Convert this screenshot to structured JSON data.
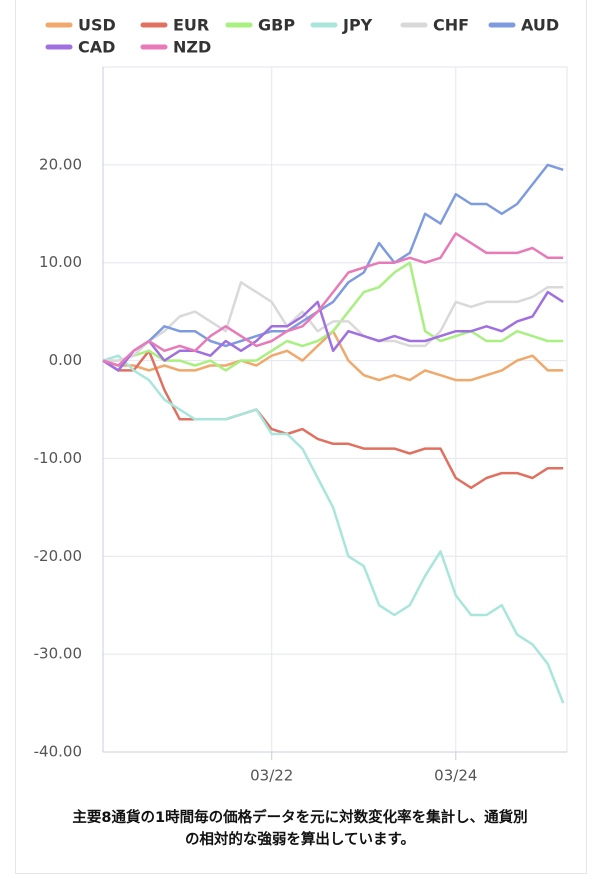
{
  "chart_data": {
    "type": "line",
    "x": [
      0,
      4,
      8,
      12,
      16,
      20,
      24,
      28,
      32,
      36,
      40,
      44,
      48,
      52,
      56,
      60,
      64,
      68,
      72,
      76,
      80,
      84,
      88,
      92,
      96,
      100,
      104,
      108,
      112,
      116,
      120
    ],
    "xlim": [
      0,
      121
    ],
    "xticks": [
      {
        "value": 44,
        "label": "03/22"
      },
      {
        "value": 92,
        "label": "03/24"
      }
    ],
    "ylim": [
      -40,
      30
    ],
    "yticks": [
      {
        "value": -40,
        "label": "-40.00"
      },
      {
        "value": -30,
        "label": "-30.00"
      },
      {
        "value": -20,
        "label": "-20.00"
      },
      {
        "value": -10,
        "label": "-10.00"
      },
      {
        "value": 0,
        "label": "0.00"
      },
      {
        "value": 10,
        "label": "10.00"
      },
      {
        "value": 20,
        "label": "20.00"
      }
    ],
    "grid": true,
    "series": [
      {
        "name": "USD",
        "color": "#f0a86b",
        "values": [
          0,
          -0.5,
          -0.5,
          -1,
          -0.5,
          -1,
          -1,
          -0.5,
          -0.5,
          0,
          -0.5,
          0.5,
          1,
          0,
          1.5,
          3,
          0,
          -1.5,
          -2,
          -1.5,
          -2,
          -1,
          -1.5,
          -2,
          -2,
          -1.5,
          -1,
          0,
          0.5,
          -1,
          -1
        ]
      },
      {
        "name": "EUR",
        "color": "#e07060",
        "values": [
          0,
          -1,
          -1,
          1,
          -3,
          -6,
          -6,
          -6,
          -6,
          -5.5,
          -5,
          -7,
          -7.5,
          -7,
          -8,
          -8.5,
          -8.5,
          -9,
          -9,
          -9,
          -9.5,
          -9,
          -9,
          -12,
          -13,
          -12,
          -11.5,
          -11.5,
          -12,
          -11,
          -11
        ]
      },
      {
        "name": "GBP",
        "color": "#a8f080",
        "values": [
          0,
          0,
          0.5,
          1,
          0,
          0,
          -0.5,
          0,
          -1,
          0,
          0,
          1,
          2,
          1.5,
          2,
          3,
          5,
          7,
          7.5,
          9,
          10,
          3,
          2,
          2.5,
          3,
          2,
          2,
          3,
          2.5,
          2,
          2
        ]
      },
      {
        "name": "JPY",
        "color": "#a8e6dc",
        "values": [
          0,
          0.5,
          -1,
          -2,
          -4,
          -5,
          -6,
          -6,
          -6,
          -5.5,
          -5,
          -7.5,
          -7.5,
          -9,
          -12,
          -15,
          -20,
          -21,
          -25,
          -26,
          -25,
          -22,
          -19.5,
          -24,
          -26,
          -26,
          -25,
          -28,
          -29,
          -31,
          -35
        ]
      },
      {
        "name": "CHF",
        "color": "#d9d9d9",
        "values": [
          0,
          0,
          0.5,
          2,
          3,
          4.5,
          5,
          4,
          3,
          8,
          7,
          6,
          3.5,
          5,
          3,
          4,
          4,
          2.5,
          2,
          2,
          1.5,
          1.5,
          3,
          6,
          5.5,
          6,
          6,
          6,
          6.5,
          7.5,
          7.5
        ]
      },
      {
        "name": "AUD",
        "color": "#7f9be0",
        "values": [
          0,
          -1,
          1,
          2,
          3.5,
          3,
          3,
          2,
          1.5,
          2,
          2.5,
          3,
          3,
          4,
          5,
          6,
          8,
          9,
          12,
          10,
          11,
          15,
          14,
          17,
          16,
          16,
          15,
          16,
          18,
          20,
          19.5
        ]
      },
      {
        "name": "CAD",
        "color": "#a070e0",
        "values": [
          0,
          -1,
          1,
          2,
          0,
          1,
          1,
          0.5,
          2,
          1,
          2,
          3.5,
          3.5,
          4.5,
          6,
          1,
          3,
          2.5,
          2,
          2.5,
          2,
          2,
          2.5,
          3,
          3,
          3.5,
          3,
          4,
          4.5,
          7,
          6
        ]
      },
      {
        "name": "NZD",
        "color": "#e87ab8",
        "values": [
          0,
          -0.5,
          1,
          2,
          1,
          1.5,
          1,
          2.5,
          3.5,
          2.5,
          1.5,
          2,
          3,
          3.5,
          5,
          7,
          9,
          9.5,
          10,
          10,
          10.5,
          10,
          10.5,
          13,
          12,
          11,
          11,
          11,
          11.5,
          10.5,
          10.5
        ]
      }
    ]
  },
  "note_lines": [
    "主要8通貨の1時間毎の価格データを元に対数変化率を集計し、通貨別",
    "の相対的な強弱を算出しています。"
  ]
}
